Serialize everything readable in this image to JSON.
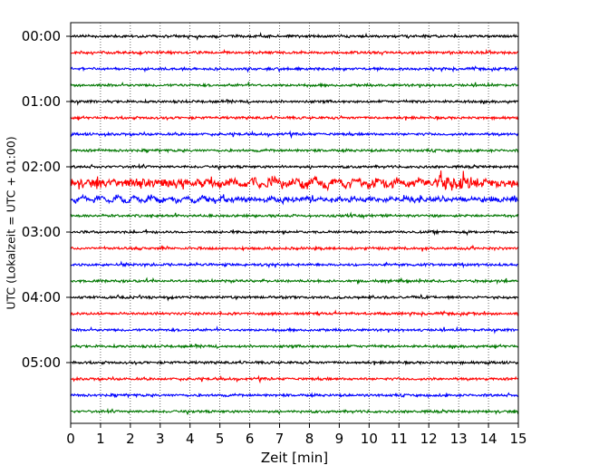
{
  "chart_data": {
    "type": "line",
    "title": "",
    "xlabel": "Zeit  [min]",
    "ylabel": "UTC (Lokalzeit = UTC + 01:00)",
    "xlim": [
      0,
      15
    ],
    "x_ticks": [
      "0",
      "1",
      "2",
      "3",
      "4",
      "5",
      "6",
      "7",
      "8",
      "9",
      "10",
      "11",
      "12",
      "13",
      "14",
      "15"
    ],
    "y_ticks": [
      "00:00",
      "01:00",
      "02:00",
      "03:00",
      "04:00",
      "05:00"
    ],
    "grid": "vertical dotted lines at every minute",
    "legend": "none",
    "trace_interval_minutes": 15,
    "trace_colors": [
      "#000000",
      "#ff0000",
      "#0000ff",
      "#007700"
    ],
    "series": [
      {
        "start": "00:00",
        "color": "#000000",
        "amplitude": "low"
      },
      {
        "start": "00:15",
        "color": "#ff0000",
        "amplitude": "low"
      },
      {
        "start": "00:30",
        "color": "#0000ff",
        "amplitude": "low"
      },
      {
        "start": "00:45",
        "color": "#007700",
        "amplitude": "low"
      },
      {
        "start": "01:00",
        "color": "#000000",
        "amplitude": "low"
      },
      {
        "start": "01:15",
        "color": "#ff0000",
        "amplitude": "low"
      },
      {
        "start": "01:30",
        "color": "#0000ff",
        "amplitude": "low"
      },
      {
        "start": "01:45",
        "color": "#007700",
        "amplitude": "low"
      },
      {
        "start": "02:00",
        "color": "#000000",
        "amplitude": "low"
      },
      {
        "start": "02:15",
        "color": "#ff0000",
        "amplitude": "high"
      },
      {
        "start": "02:30",
        "color": "#0000ff",
        "amplitude": "medium"
      },
      {
        "start": "02:45",
        "color": "#007700",
        "amplitude": "low"
      },
      {
        "start": "03:00",
        "color": "#000000",
        "amplitude": "low"
      },
      {
        "start": "03:15",
        "color": "#ff0000",
        "amplitude": "low"
      },
      {
        "start": "03:30",
        "color": "#0000ff",
        "amplitude": "low"
      },
      {
        "start": "03:45",
        "color": "#007700",
        "amplitude": "low"
      },
      {
        "start": "04:00",
        "color": "#000000",
        "amplitude": "low"
      },
      {
        "start": "04:15",
        "color": "#ff0000",
        "amplitude": "low"
      },
      {
        "start": "04:30",
        "color": "#0000ff",
        "amplitude": "low"
      },
      {
        "start": "04:45",
        "color": "#007700",
        "amplitude": "low"
      },
      {
        "start": "05:00",
        "color": "#000000",
        "amplitude": "low"
      },
      {
        "start": "05:15",
        "color": "#ff0000",
        "amplitude": "low"
      },
      {
        "start": "05:30",
        "color": "#0000ff",
        "amplitude": "low"
      },
      {
        "start": "05:45",
        "color": "#007700",
        "amplitude": "low"
      }
    ]
  }
}
